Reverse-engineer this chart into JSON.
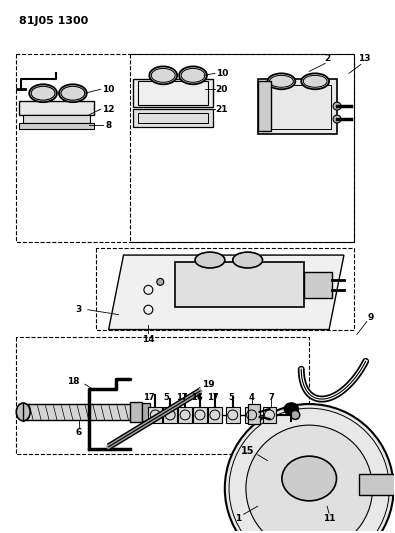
{
  "title": "81J05 1300",
  "bg_color": "#ffffff",
  "lc": "#1a1a1a",
  "gray_light": "#cccccc",
  "gray_mid": "#aaaaaa",
  "gray_dark": "#888888"
}
